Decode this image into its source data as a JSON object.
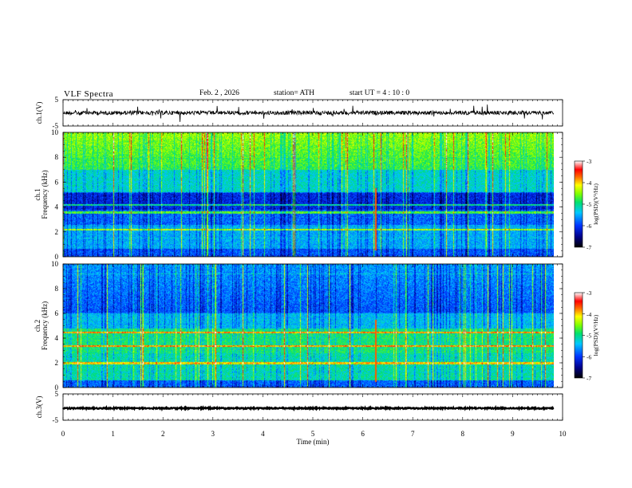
{
  "header": {
    "title": "VLF  Spectra",
    "date": "Feb. 2  , 2026",
    "station": "station= ATH",
    "start": "start  UT  =   4  : 10 : 0"
  },
  "chart_data": {
    "type": "heatmap",
    "xlabel": "Time  (min)",
    "xlim": [
      0,
      10
    ],
    "xticks": [
      0,
      1,
      2,
      3,
      4,
      5,
      6,
      7,
      8,
      9,
      10
    ],
    "panels": [
      {
        "label": "ch.1(V)",
        "type": "line",
        "ylim": [
          -5,
          5
        ],
        "yticks": [
          -5,
          5
        ],
        "noise_level": "high"
      },
      {
        "label": "ch.1\nFrequency  (kHz)",
        "type": "heatmap",
        "ylim": [
          0,
          10
        ],
        "yticks": [
          0,
          2,
          4,
          6,
          8,
          10
        ],
        "colorbar": {
          "label": "log(PSD)(V²/Hz)",
          "range": [
            -7,
            -3
          ],
          "ticks": [
            -3,
            -4,
            -5,
            -6,
            -7
          ]
        },
        "strong_bands_khz": [
          2.2,
          3.6,
          4.2
        ],
        "high_freq_level": "high"
      },
      {
        "label": "ch.2\nFrequency  (kHz)",
        "type": "heatmap",
        "ylim": [
          0,
          10
        ],
        "yticks": [
          0,
          2,
          4,
          6,
          8,
          10
        ],
        "colorbar": {
          "label": "log(PSD)(V²/Hz)",
          "range": [
            -7,
            -3
          ],
          "ticks": [
            -3,
            -4,
            -5,
            -6,
            -7
          ]
        },
        "strong_bands_khz": [
          2.0,
          3.4,
          4.5
        ],
        "high_freq_level": "low"
      },
      {
        "label": "ch.3(V)",
        "type": "line",
        "ylim": [
          -5,
          5
        ],
        "yticks": [
          -5,
          5
        ],
        "noise_level": "flat"
      }
    ]
  },
  "colors": {
    "axis": "#000000",
    "background": "#ffffff"
  }
}
